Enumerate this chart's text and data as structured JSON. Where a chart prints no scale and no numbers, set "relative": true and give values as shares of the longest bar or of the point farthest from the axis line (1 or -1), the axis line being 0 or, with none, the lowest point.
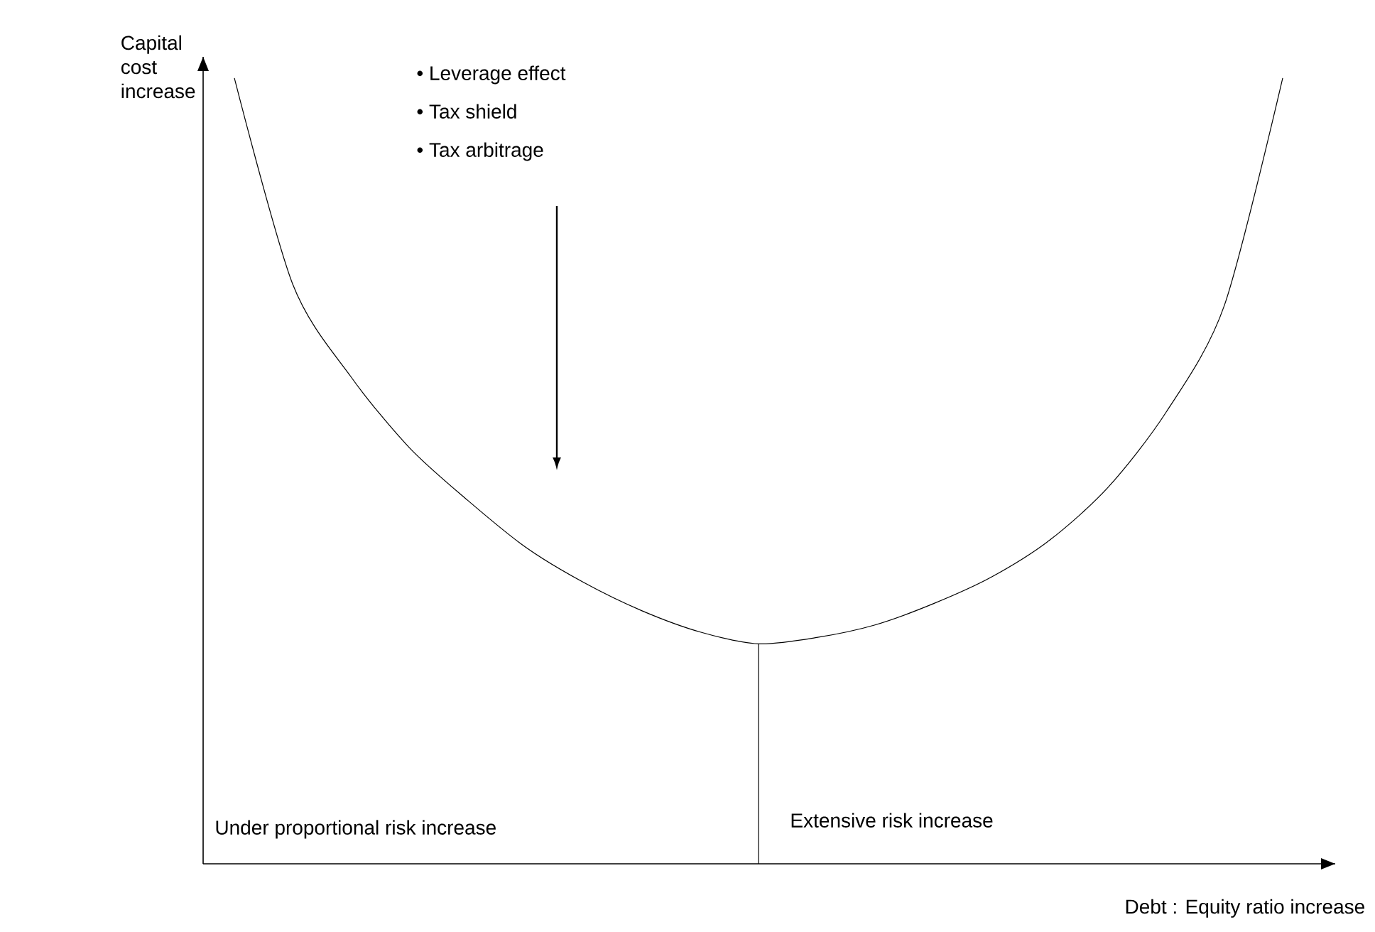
{
  "chart_data": {
    "type": "line",
    "relative": true,
    "xlabel": "Debt : Equity ratio increase",
    "ylabel": "Capital cost increase",
    "categories": [
      null,
      null,
      null,
      null,
      null,
      null,
      null,
      null,
      null,
      null,
      null,
      null,
      null,
      null,
      null,
      null,
      null,
      null,
      null
    ],
    "series": [
      {
        "color": "#000000",
        "values": [
          1.0,
          0.738,
          0.62,
          0.53,
          0.463,
          0.403,
          0.358,
          0.322,
          0.295,
          0.28,
          0.288,
          0.304,
          0.331,
          0.365,
          0.412,
          0.479,
          0.575,
          0.711,
          1.0
        ]
      }
    ],
    "annotations": [
      "• Leverage effect",
      "• Tax shield",
      "• Tax arbitrage",
      "Under proportional risk increase",
      "Extensive risk increase"
    ],
    "marker": "none",
    "line_style": "solid"
  }
}
